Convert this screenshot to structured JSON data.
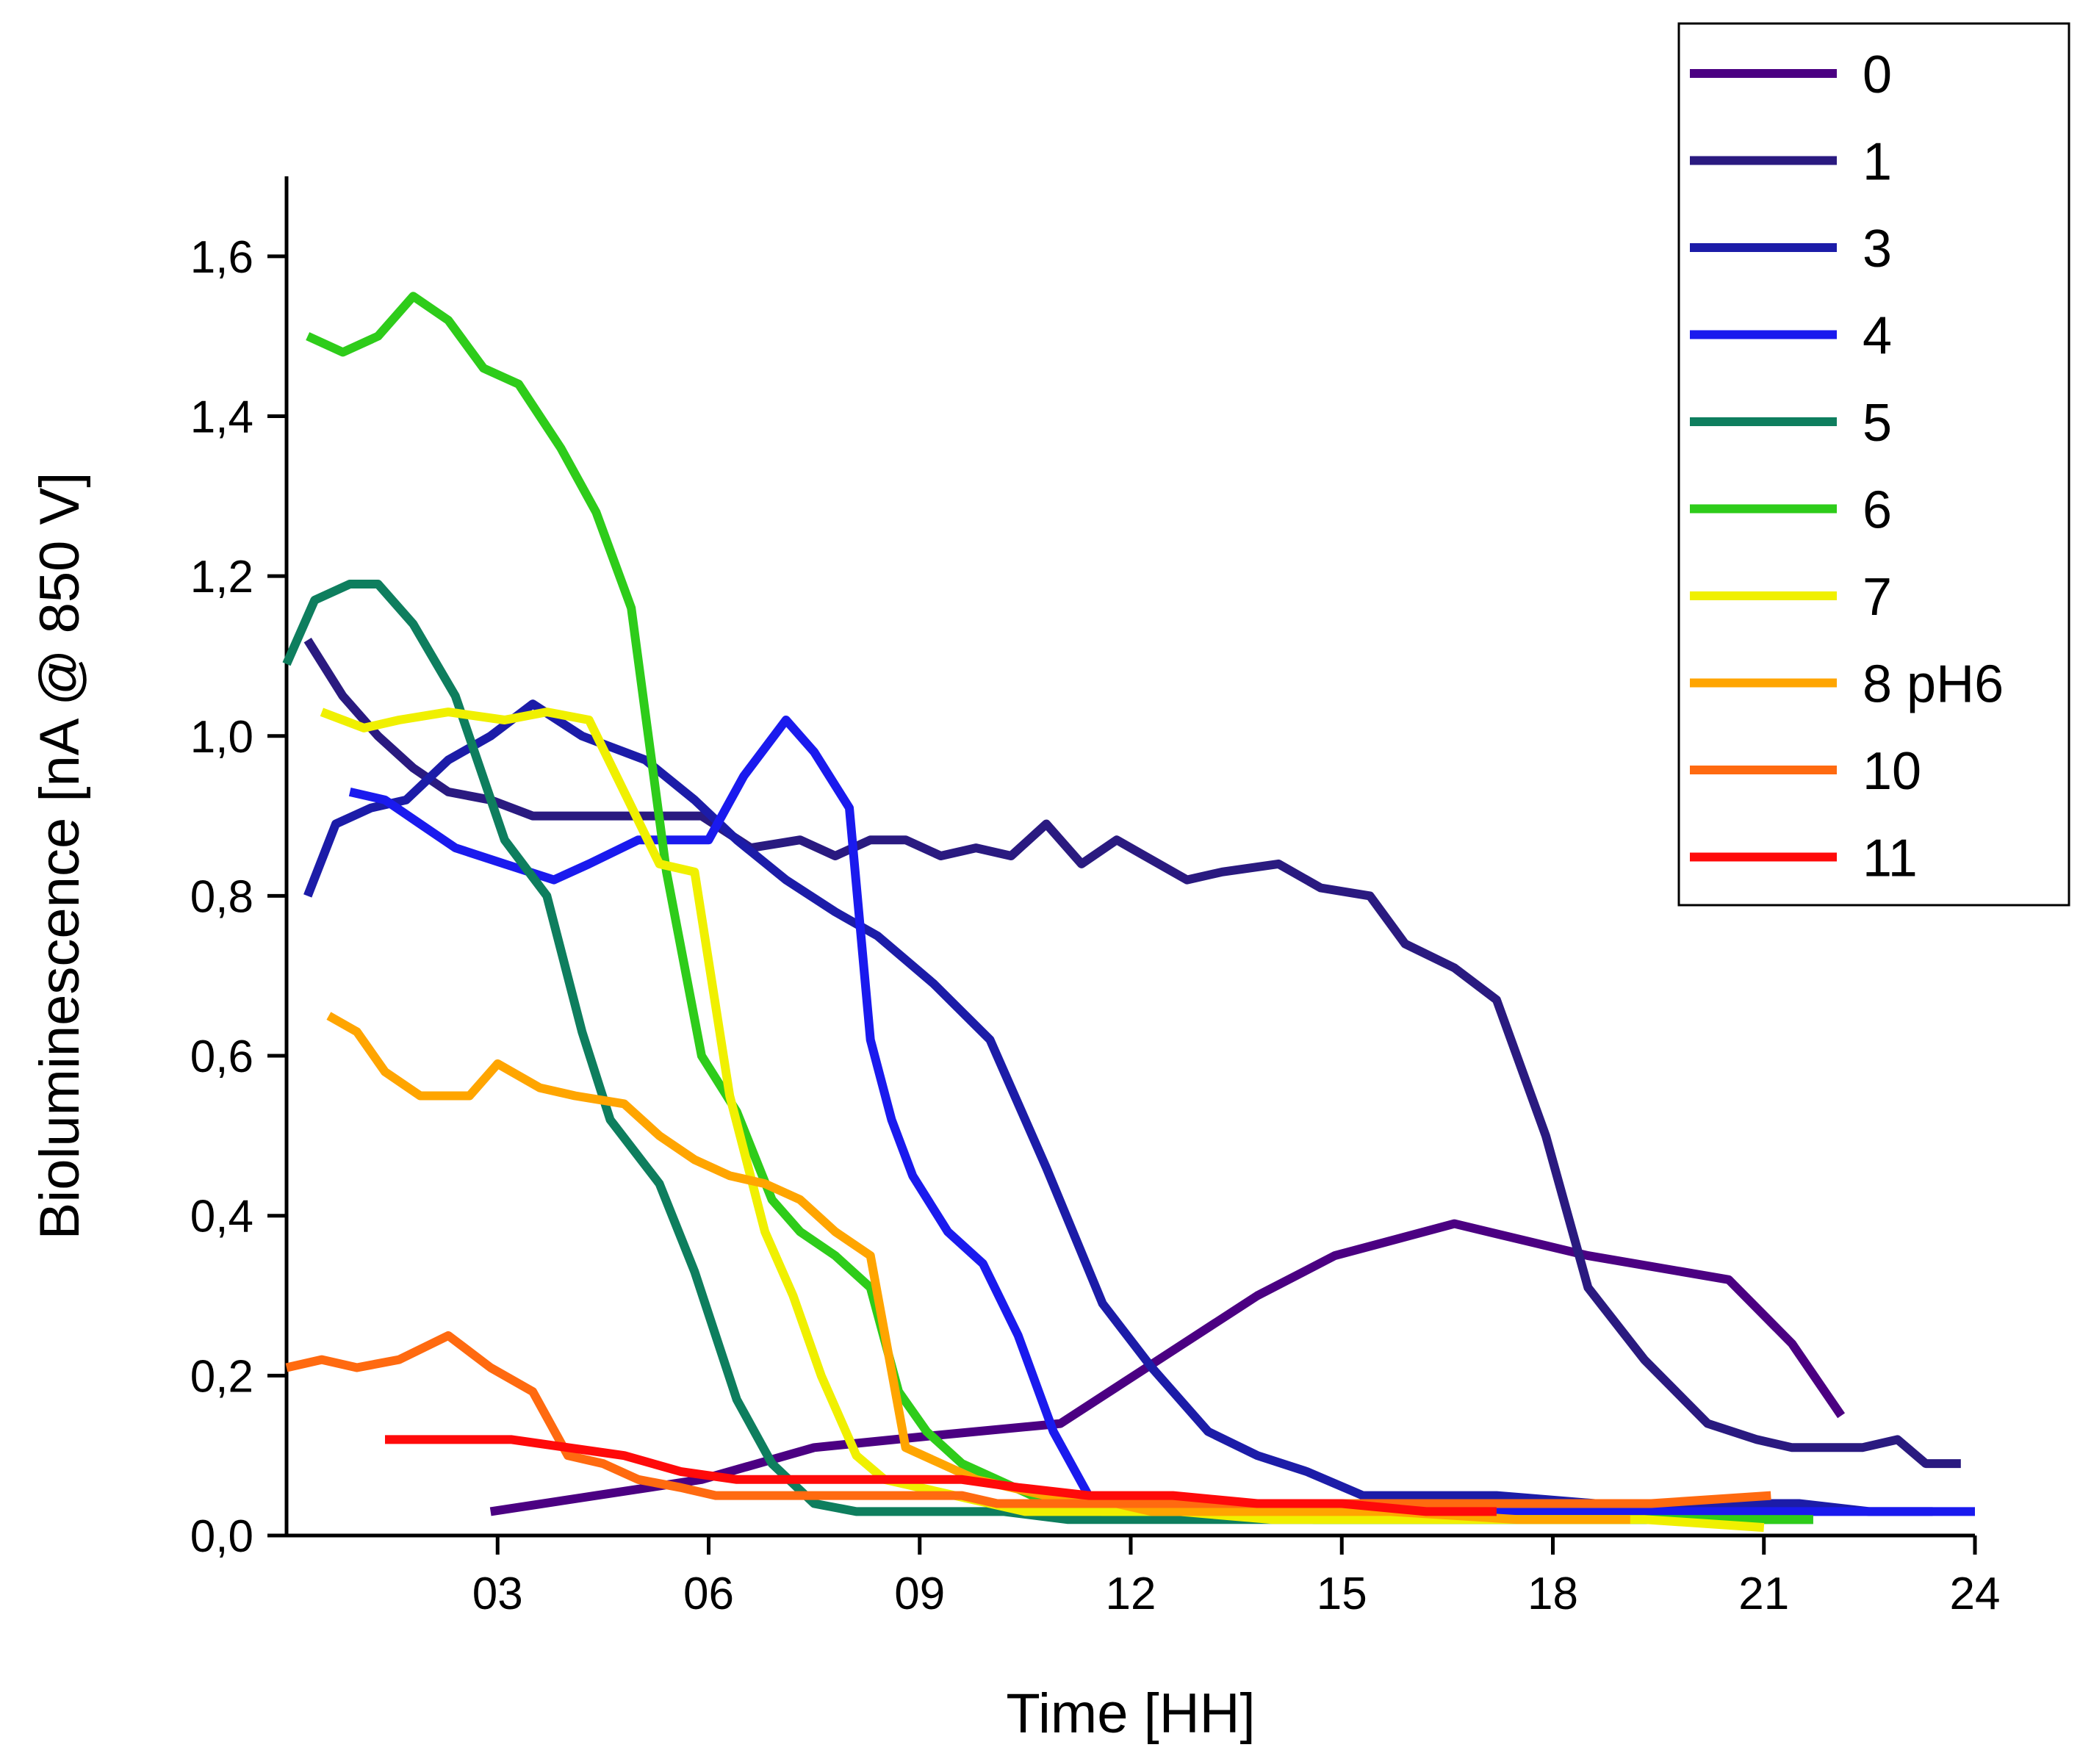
{
  "chart_data": {
    "type": "line",
    "title": "",
    "xlabel": "Time [HH]",
    "ylabel": "Bioluminescence [nA @ 850 V]",
    "xlim": [
      0,
      24
    ],
    "ylim": [
      0,
      1.7
    ],
    "x_ticks": [
      3,
      6,
      9,
      12,
      15,
      18,
      21,
      24
    ],
    "x_tick_labels": [
      "03",
      "06",
      "09",
      "12",
      "15",
      "18",
      "21",
      "24"
    ],
    "y_ticks": [
      0,
      0.2,
      0.4,
      0.6,
      0.8,
      1.0,
      1.2,
      1.4,
      1.6
    ],
    "y_tick_labels": [
      "0,0",
      "0,2",
      "0,4",
      "0,6",
      "0,8",
      "1,0",
      "1,2",
      "1,4",
      "1,6"
    ],
    "grid": false,
    "legend_position": "top-right",
    "series": [
      {
        "name": "0",
        "color": "#4b0082",
        "x": [
          2.9,
          4.4,
          5.9,
          7.5,
          9.2,
          11.0,
          12.4,
          13.8,
          14.9,
          16.6,
          18.5,
          20.5,
          21.4,
          22.1
        ],
        "y": [
          0.03,
          0.05,
          0.07,
          0.11,
          0.125,
          0.14,
          0.22,
          0.3,
          0.35,
          0.39,
          0.35,
          0.32,
          0.24,
          0.15
        ]
      },
      {
        "name": "1",
        "color": "#2a1a80",
        "x": [
          0.3,
          0.8,
          1.3,
          1.8,
          2.3,
          2.9,
          3.5,
          4.3,
          5.0,
          5.9,
          6.6,
          7.3,
          7.8,
          8.3,
          8.8,
          9.3,
          9.8,
          10.3,
          10.8,
          11.3,
          11.8,
          12.2,
          12.8,
          13.3,
          14.1,
          14.7,
          15.4,
          15.9,
          16.6,
          17.2,
          17.9,
          18.5,
          19.3,
          20.2,
          20.9,
          21.4,
          21.8,
          22.4,
          22.9,
          23.3,
          23.8
        ],
        "y": [
          1.12,
          1.05,
          1.0,
          0.96,
          0.93,
          0.92,
          0.9,
          0.9,
          0.9,
          0.9,
          0.86,
          0.87,
          0.85,
          0.87,
          0.87,
          0.85,
          0.86,
          0.85,
          0.89,
          0.84,
          0.87,
          0.85,
          0.82,
          0.83,
          0.84,
          0.81,
          0.8,
          0.74,
          0.71,
          0.67,
          0.5,
          0.31,
          0.22,
          0.14,
          0.12,
          0.11,
          0.11,
          0.11,
          0.12,
          0.09,
          0.09
        ]
      },
      {
        "name": "3",
        "color": "#1c1ca8",
        "x": [
          0.3,
          0.7,
          1.2,
          1.7,
          2.3,
          2.9,
          3.5,
          4.2,
          5.1,
          5.8,
          6.4,
          7.1,
          7.8,
          8.4,
          9.2,
          10.0,
          10.8,
          11.6,
          12.3,
          13.1,
          13.8,
          14.5,
          15.3,
          16.1,
          17.2,
          18.6,
          20.0,
          21.5,
          22.5,
          23.4
        ],
        "y": [
          0.8,
          0.89,
          0.91,
          0.92,
          0.97,
          1.0,
          1.04,
          1.0,
          0.97,
          0.92,
          0.87,
          0.82,
          0.78,
          0.75,
          0.69,
          0.62,
          0.46,
          0.29,
          0.21,
          0.13,
          0.1,
          0.08,
          0.05,
          0.05,
          0.05,
          0.04,
          0.04,
          0.04,
          0.03,
          0.03
        ]
      },
      {
        "name": "4",
        "color": "#1a1aee",
        "x": [
          0.9,
          1.4,
          1.9,
          2.4,
          3.1,
          3.8,
          4.3,
          5.0,
          5.6,
          6.0,
          6.5,
          7.1,
          7.5,
          8.0,
          8.3,
          8.6,
          8.9,
          9.4,
          9.9,
          10.4,
          10.9,
          11.4,
          11.9,
          12.6,
          13.6,
          14.8,
          16.2,
          17.8,
          19.6,
          21.5,
          23.0,
          24.0
        ],
        "y": [
          0.93,
          0.92,
          0.89,
          0.86,
          0.84,
          0.82,
          0.84,
          0.87,
          0.87,
          0.87,
          0.95,
          1.02,
          0.98,
          0.91,
          0.62,
          0.52,
          0.45,
          0.38,
          0.34,
          0.25,
          0.13,
          0.05,
          0.04,
          0.04,
          0.04,
          0.04,
          0.03,
          0.03,
          0.03,
          0.03,
          0.03,
          0.03
        ]
      },
      {
        "name": "5",
        "color": "#0e7e5e",
        "x": [
          0.0,
          0.4,
          0.9,
          1.3,
          1.8,
          2.4,
          3.1,
          3.7,
          4.2,
          4.6,
          5.3,
          5.8,
          6.4,
          6.9,
          7.5,
          8.1,
          8.6,
          9.1,
          9.5,
          10.2,
          11.1,
          12.3,
          13.9,
          15.7,
          17.7,
          19.6,
          21.3,
          21.7
        ],
        "y": [
          1.09,
          1.17,
          1.19,
          1.19,
          1.14,
          1.05,
          0.87,
          0.8,
          0.63,
          0.52,
          0.44,
          0.33,
          0.17,
          0.09,
          0.04,
          0.03,
          0.03,
          0.03,
          0.03,
          0.03,
          0.02,
          0.02,
          0.02,
          0.02,
          0.02,
          0.02,
          0.02,
          0.02
        ]
      },
      {
        "name": "6",
        "color": "#2ecc1a",
        "x": [
          0.3,
          0.8,
          1.3,
          1.8,
          2.3,
          2.8,
          3.3,
          3.9,
          4.4,
          4.9,
          5.4,
          5.9,
          6.4,
          6.9,
          7.3,
          7.8,
          8.3,
          8.7,
          9.1,
          9.6,
          10.1,
          10.6,
          11.1,
          11.6,
          12.3,
          13.3,
          14.6,
          16.2,
          18.0,
          19.8,
          21.4,
          21.7
        ],
        "y": [
          1.5,
          1.48,
          1.5,
          1.55,
          1.52,
          1.46,
          1.44,
          1.36,
          1.28,
          1.16,
          0.83,
          0.6,
          0.53,
          0.42,
          0.38,
          0.35,
          0.31,
          0.18,
          0.13,
          0.09,
          0.07,
          0.05,
          0.04,
          0.03,
          0.03,
          0.03,
          0.02,
          0.02,
          0.02,
          0.02,
          0.02,
          0.02
        ]
      },
      {
        "name": "7",
        "color": "#f0f000",
        "x": [
          0.5,
          1.1,
          1.6,
          2.3,
          3.1,
          3.7,
          4.3,
          4.8,
          5.3,
          5.8,
          6.3,
          6.8,
          7.2,
          7.6,
          8.1,
          8.5,
          9.0,
          9.5,
          10.0,
          10.5,
          11.1,
          11.8,
          12.7,
          14.0,
          15.6,
          17.4,
          19.3,
          21.0
        ],
        "y": [
          1.03,
          1.01,
          1.02,
          1.03,
          1.02,
          1.03,
          1.02,
          0.93,
          0.84,
          0.83,
          0.55,
          0.38,
          0.3,
          0.2,
          0.1,
          0.07,
          0.06,
          0.05,
          0.04,
          0.03,
          0.03,
          0.03,
          0.03,
          0.02,
          0.02,
          0.02,
          0.02,
          0.01
        ]
      },
      {
        "name": "8 pH6",
        "color": "#ffa500",
        "x": [
          0.6,
          1.0,
          1.4,
          1.9,
          2.6,
          3.0,
          3.6,
          4.1,
          4.8,
          5.3,
          5.8,
          6.3,
          6.8,
          7.3,
          7.8,
          8.3,
          8.8,
          9.3,
          9.8,
          10.3,
          10.8,
          11.3,
          11.8,
          12.3,
          13.0,
          14.2,
          15.7,
          17.5,
          19.1
        ],
        "y": [
          0.65,
          0.63,
          0.58,
          0.55,
          0.55,
          0.59,
          0.56,
          0.55,
          0.54,
          0.5,
          0.47,
          0.45,
          0.44,
          0.42,
          0.38,
          0.35,
          0.11,
          0.09,
          0.07,
          0.06,
          0.05,
          0.04,
          0.04,
          0.03,
          0.03,
          0.03,
          0.03,
          0.02,
          0.02
        ]
      },
      {
        "name": "10",
        "color": "#ff6a10",
        "x": [
          0.0,
          0.5,
          1.0,
          1.6,
          2.3,
          2.9,
          3.5,
          4.0,
          4.5,
          5.0,
          5.6,
          6.1,
          6.6,
          7.1,
          7.6,
          8.1,
          8.6,
          9.1,
          9.6,
          10.1,
          10.6,
          11.3,
          12.0,
          13.0,
          14.2,
          15.8,
          17.5,
          19.4,
          21.1
        ],
        "y": [
          0.21,
          0.22,
          0.21,
          0.22,
          0.25,
          0.21,
          0.18,
          0.1,
          0.09,
          0.07,
          0.06,
          0.05,
          0.05,
          0.05,
          0.05,
          0.05,
          0.05,
          0.05,
          0.05,
          0.04,
          0.04,
          0.04,
          0.04,
          0.04,
          0.04,
          0.04,
          0.04,
          0.04,
          0.05
        ]
      },
      {
        "name": "11",
        "color": "#ff0a0a",
        "x": [
          1.4,
          2.0,
          2.6,
          3.2,
          4.0,
          4.8,
          5.6,
          6.4,
          7.2,
          8.0,
          8.8,
          9.6,
          10.4,
          11.4,
          12.6,
          13.8,
          15.0,
          16.2,
          17.2
        ],
        "y": [
          0.12,
          0.12,
          0.12,
          0.12,
          0.11,
          0.1,
          0.08,
          0.07,
          0.07,
          0.07,
          0.07,
          0.07,
          0.06,
          0.05,
          0.05,
          0.04,
          0.04,
          0.03,
          0.03
        ]
      }
    ]
  }
}
